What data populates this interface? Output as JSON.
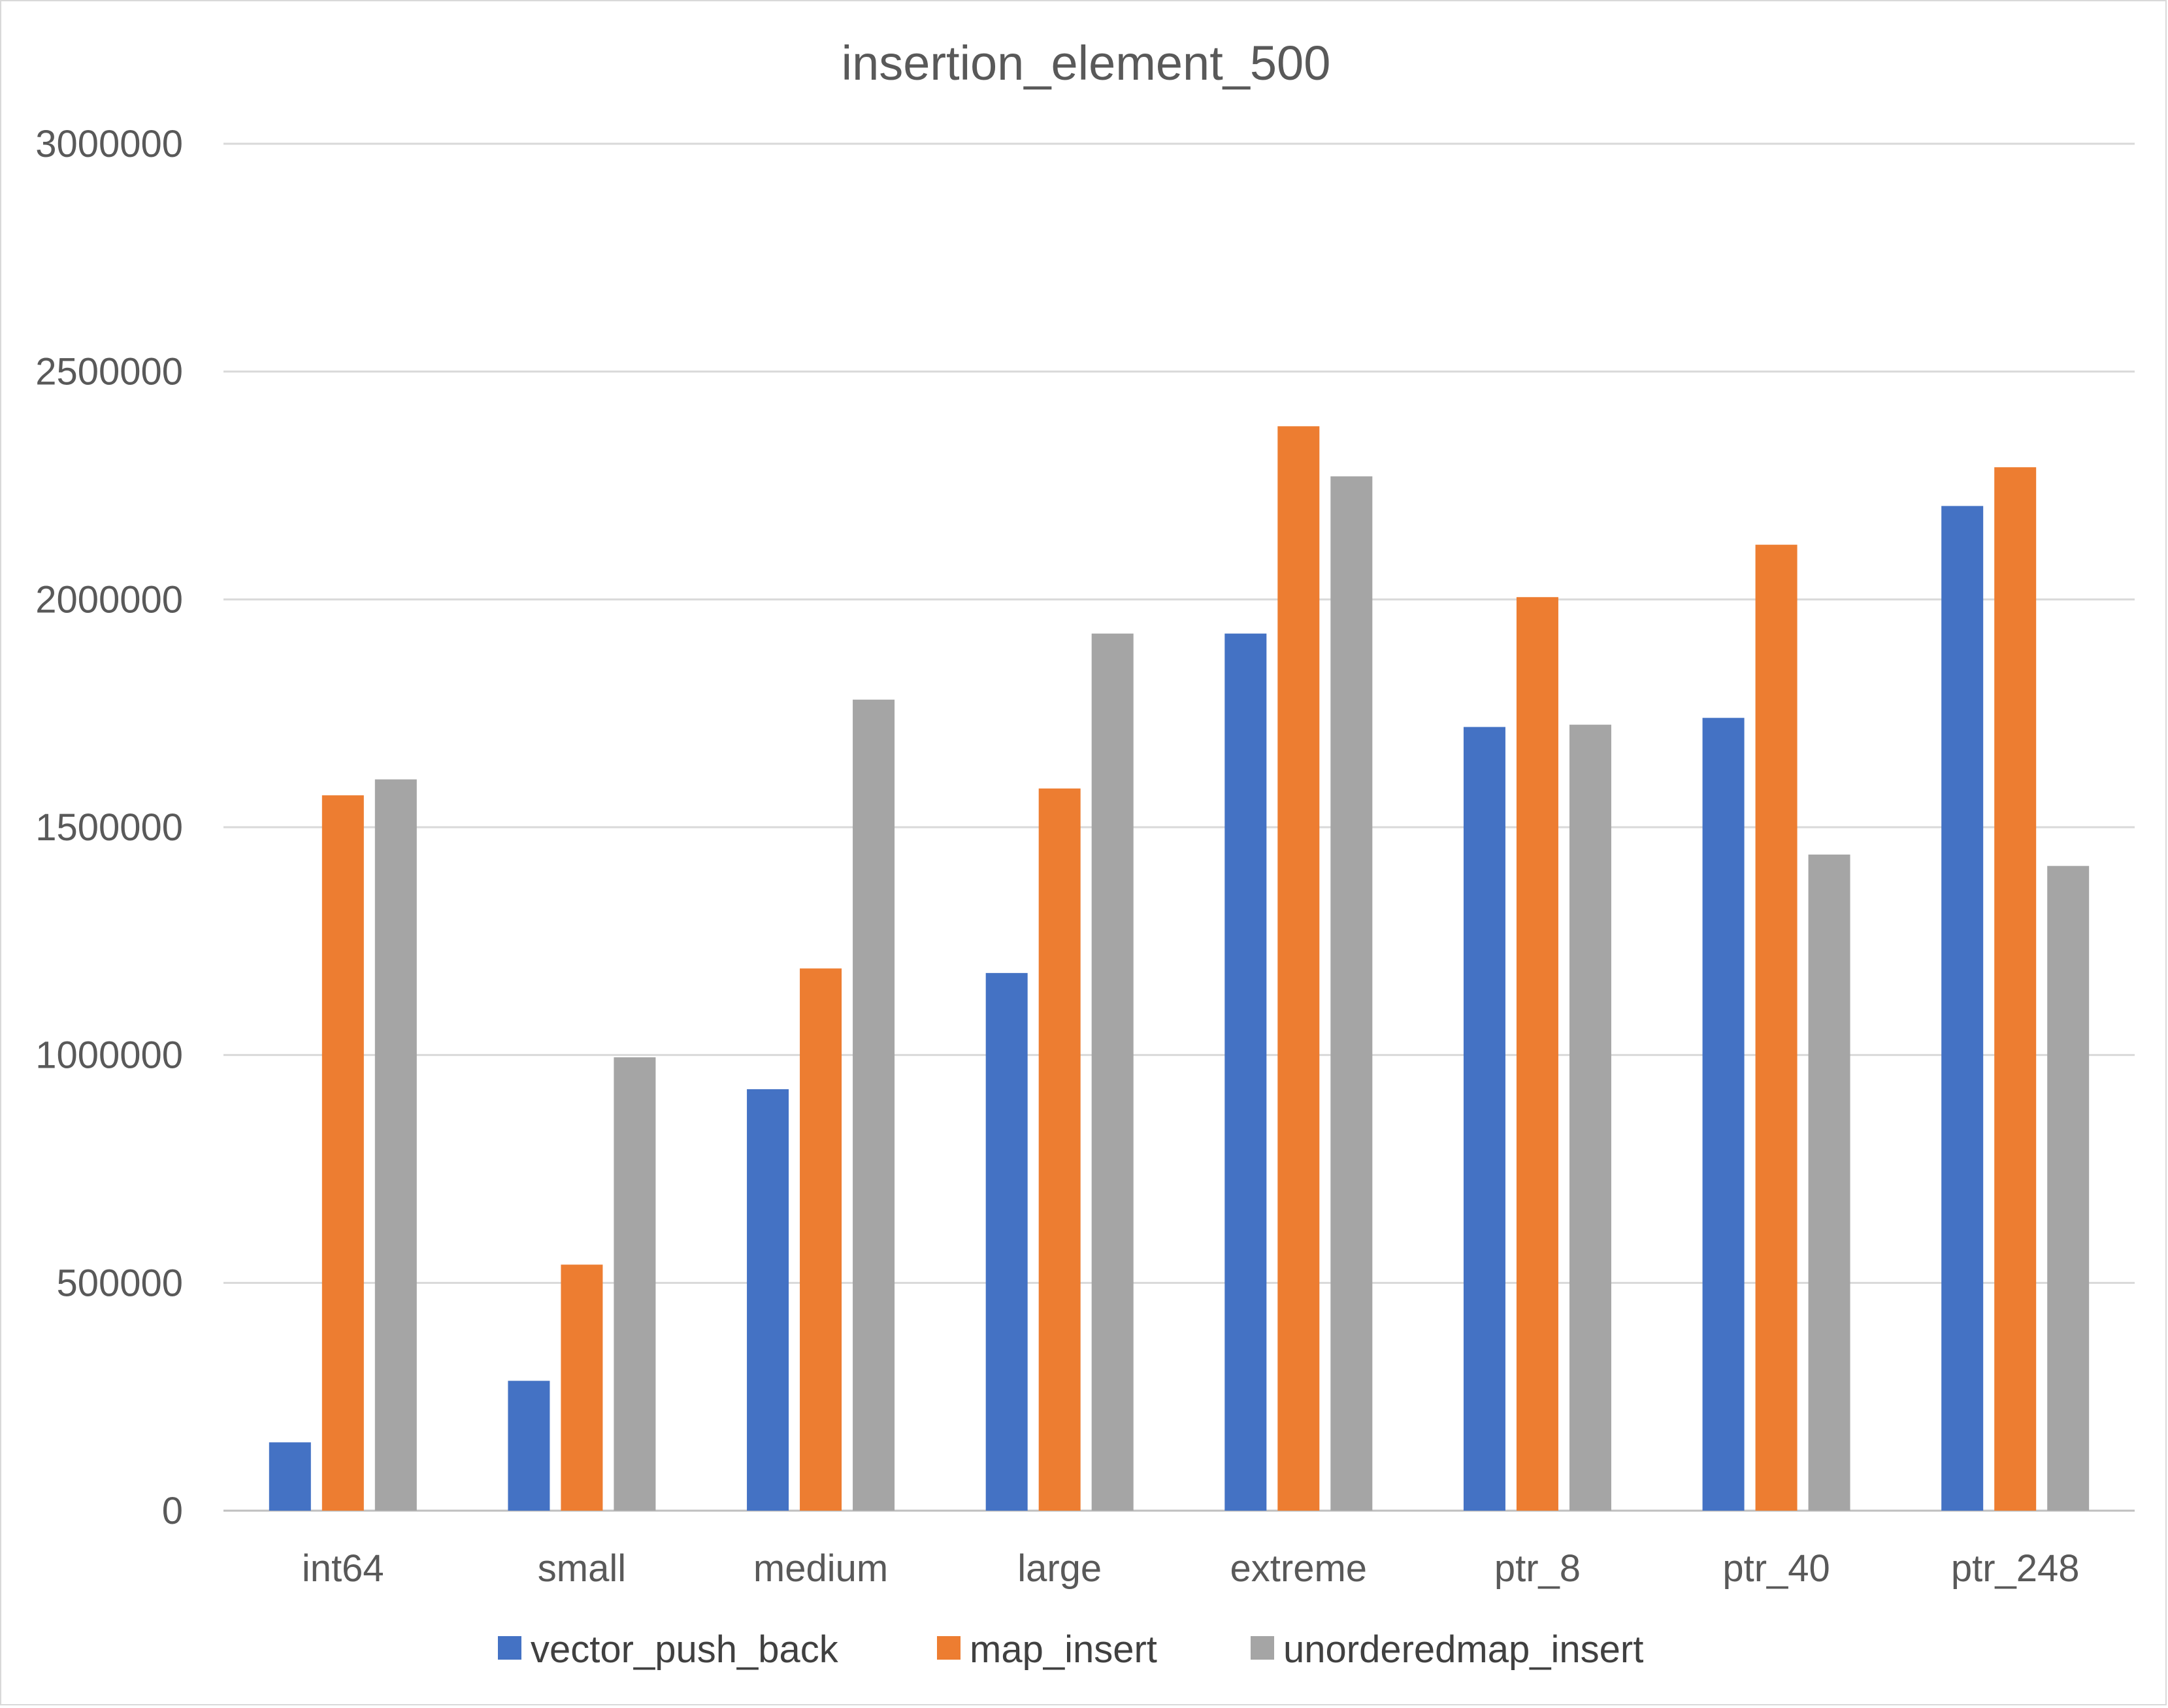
{
  "chart_data": {
    "type": "bar",
    "title": "insertion_element_500",
    "xlabel": "",
    "ylabel": "",
    "ylim": [
      0,
      3000000
    ],
    "yticks": [
      0,
      500000,
      1000000,
      1500000,
      2000000,
      2500000,
      3000000
    ],
    "ytick_labels": [
      "0",
      "500000",
      "1000000",
      "1500000",
      "2000000",
      "2500000",
      "3000000"
    ],
    "grid": true,
    "legend_position": "bottom",
    "categories": [
      "int64",
      "small",
      "medium",
      "large",
      "extreme",
      "ptr_8",
      "ptr_40",
      "ptr_248"
    ],
    "series": [
      {
        "name": "vector_push_back",
        "color": "#4472C4",
        "values": [
          150000,
          285000,
          925000,
          1180000,
          1925000,
          1720000,
          1740000,
          2205000
        ]
      },
      {
        "name": "map_insert",
        "color": "#ED7D31",
        "values": [
          1570000,
          540000,
          1190000,
          1585000,
          2380000,
          2005000,
          2120000,
          2290000
        ]
      },
      {
        "name": "unorderedmap_insert",
        "color": "#A5A5A5",
        "values": [
          1605000,
          995000,
          1780000,
          1925000,
          2270000,
          1725000,
          1440000,
          1415000
        ]
      }
    ]
  }
}
